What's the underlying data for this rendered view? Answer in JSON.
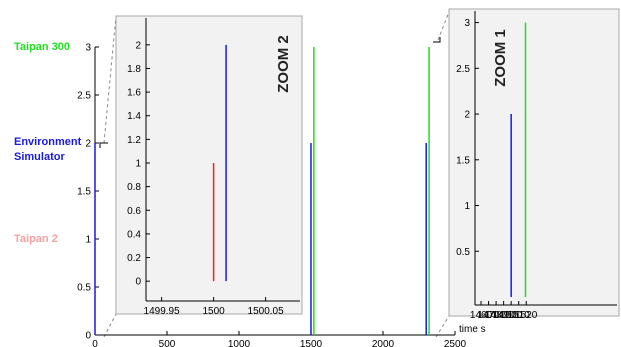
{
  "legend_labels": [
    {
      "text": "Taipan 300",
      "color": "#22dd22"
    },
    {
      "text": "Environment",
      "color": "#1a1ae0"
    },
    {
      "text": "Simulator",
      "color": "#1a1ae0"
    },
    {
      "text": "Taipan 2",
      "color": "#f4a0a0"
    }
  ],
  "colors": {
    "taipan300": "#22dd22",
    "env_sim": "#1a1ae0",
    "taipan2": "#ee2222",
    "panel_bg": "#f2f2f2",
    "leader_line": "#888888"
  },
  "chart_data": [
    {
      "id": "main",
      "type": "bar",
      "xlabel": "time s",
      "xlim": [
        0,
        2500
      ],
      "ylim": [
        0,
        3
      ],
      "xticks": [
        0,
        500,
        1000,
        1500,
        2000,
        2500
      ],
      "yticks": [
        0,
        0.5,
        1,
        1.5,
        2,
        2.5,
        3
      ],
      "xtick_labels": [
        "0",
        "500",
        "1000",
        "1500",
        "2000",
        "2500"
      ],
      "ytick_labels": [
        "0",
        "0.5",
        "1",
        "1.5",
        "2",
        "2.5",
        "3"
      ],
      "series": [
        {
          "name": "Environment Simulator",
          "color": "#1a1ae0",
          "points": [
            {
              "x": 0,
              "y": 2
            },
            {
              "x": 1500,
              "y": 2
            },
            {
              "x": 2300,
              "y": 2
            }
          ]
        },
        {
          "name": "Taipan 300",
          "color": "#22dd22",
          "points": [
            {
              "x": 1520,
              "y": 3
            },
            {
              "x": 2320,
              "y": 3
            }
          ]
        },
        {
          "name": "Taipan 2",
          "color": "#ee2222",
          "points": []
        }
      ]
    },
    {
      "id": "zoom2",
      "type": "bar",
      "title": "ZOOM 2",
      "xlim": [
        1499.935,
        1500.085
      ],
      "ylim": [
        -0.1,
        2.1
      ],
      "xticks": [
        1499.95,
        1500,
        1500.05
      ],
      "xtick_labels": [
        "1499.95",
        "1500",
        "1500.05"
      ],
      "yticks": [
        0,
        0.2,
        0.4,
        0.6,
        0.8,
        1,
        1.2,
        1.4,
        1.6,
        1.8,
        2
      ],
      "ytick_labels": [
        "0",
        "0.2",
        "0.4",
        "0.6",
        "0.8",
        "1",
        "1.2",
        "1.4",
        "1.6",
        "1.8",
        "2"
      ],
      "series": [
        {
          "name": "Taipan 2",
          "color": "#ee2222",
          "points": [
            {
              "x": 1500.0,
              "y": 1
            }
          ]
        },
        {
          "name": "Environment Simulator",
          "color": "#1a1ae0",
          "points": [
            {
              "x": 1500.012,
              "y": 2
            }
          ]
        }
      ]
    },
    {
      "id": "zoom1",
      "type": "bar",
      "title": "ZOOM 1",
      "xlim": [
        1452,
        1525
      ],
      "ylim": [
        0,
        3.05
      ],
      "xticks": [
        1460,
        1470,
        1480,
        1490,
        1500,
        1510,
        1520
      ],
      "xtick_labels": [
        "1460",
        "1470",
        "1480",
        "1490",
        "1500",
        "1510",
        "1520"
      ],
      "yticks": [
        0.5,
        1,
        1.5,
        2,
        2.5,
        3
      ],
      "ytick_labels": [
        "0.5",
        "1",
        "1.5",
        "2",
        "2.5",
        "3"
      ],
      "series": [
        {
          "name": "Environment Simulator",
          "color": "#1a1ae0",
          "points": [
            {
              "x": 1500,
              "y": 2
            }
          ]
        },
        {
          "name": "Taipan 300",
          "color": "#22dd22",
          "points": [
            {
              "x": 1519,
              "y": 3
            }
          ]
        }
      ]
    }
  ]
}
